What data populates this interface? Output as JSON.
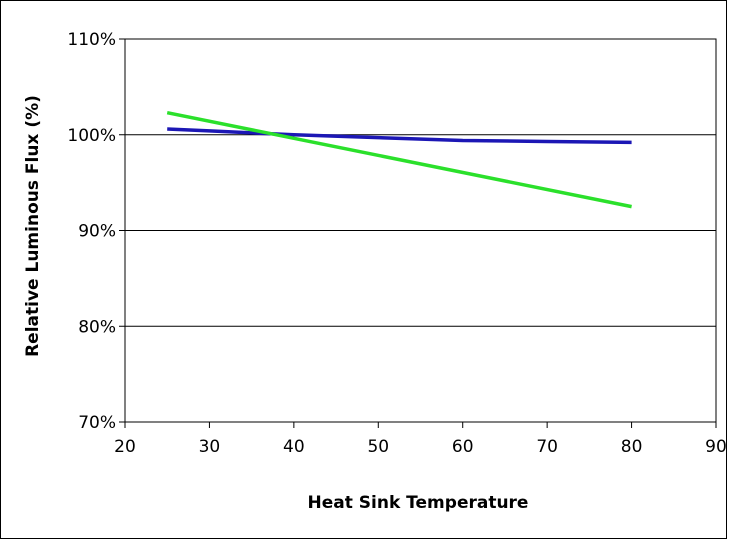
{
  "chart_data": {
    "type": "line",
    "title": "",
    "xlabel": "Heat Sink Temperature",
    "ylabel": "Relative Luminous Flux (%)",
    "xlim": [
      20,
      90
    ],
    "ylim": [
      70,
      110
    ],
    "x_ticks": [
      20,
      30,
      40,
      50,
      60,
      70,
      80,
      90
    ],
    "y_ticks": [
      70,
      80,
      90,
      100,
      110
    ],
    "x_tick_labels": [
      "20",
      "30",
      "40",
      "50",
      "60",
      "70",
      "80",
      "90"
    ],
    "y_tick_labels": [
      "70%",
      "80%",
      "90%",
      "100%",
      "110%"
    ],
    "grid": "horizontal",
    "legend": "none",
    "series": [
      {
        "color": "#1c17b5",
        "x": [
          25,
          30,
          40,
          50,
          60,
          70,
          80
        ],
        "y": [
          100.6,
          100.4,
          100.0,
          99.7,
          99.4,
          99.3,
          99.2
        ]
      },
      {
        "color": "#2be02b",
        "x": [
          25,
          80
        ],
        "y": [
          102.3,
          92.5
        ]
      }
    ]
  }
}
